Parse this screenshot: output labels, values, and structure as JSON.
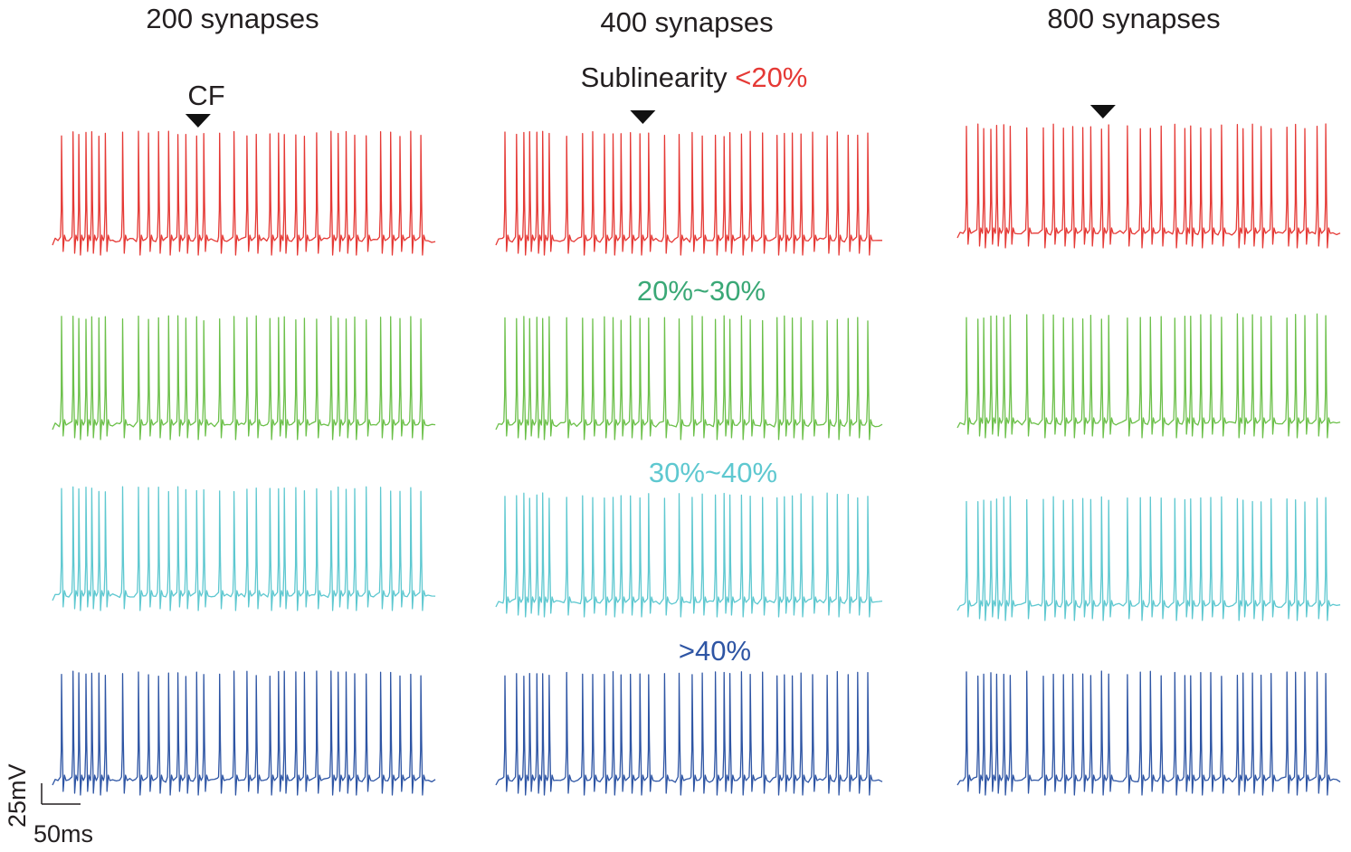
{
  "chart_data": {
    "type": "line",
    "columns": [
      "200 synapses",
      "400 synapses",
      "800 synapses"
    ],
    "cf_marker_label": "CF",
    "rows": [
      {
        "label_prefix": "Sublinearity ",
        "label": "<20%",
        "color": "#e53935"
      },
      {
        "label_prefix": "",
        "label": "20%~30%",
        "color": "#3aa876"
      },
      {
        "label_prefix": "",
        "label": "30%~40%",
        "color": "#5ec8d0"
      },
      {
        "label_prefix": "",
        "label": ">40%",
        "color": "#2e55a4"
      }
    ],
    "trace_colors": [
      "#e53935",
      "#6cc04a",
      "#5ec8d0",
      "#2e55a4"
    ],
    "label_prefix_color": "#231f20",
    "spike_times_ms": [
      [
        0,
        16,
        24,
        34,
        42,
        52,
        61,
        85,
        107,
        121,
        135,
        149,
        162,
        173,
        188,
        198,
        220,
        240,
        258,
        271,
        290,
        302,
        310,
        326,
        338,
        355,
        375,
        385,
        396,
        408,
        424,
        444,
        458,
        471,
        486,
        500
      ],
      [
        0,
        16,
        26,
        34,
        44,
        52,
        61,
        85,
        107,
        121,
        137,
        149,
        160,
        173,
        186,
        198,
        220,
        240,
        258,
        272,
        290,
        302,
        310,
        326,
        338,
        355,
        375,
        385,
        396,
        408,
        424,
        444,
        458,
        473,
        486,
        500
      ],
      [
        0,
        16,
        24,
        34,
        42,
        52,
        61,
        84,
        107,
        121,
        135,
        148,
        162,
        173,
        188,
        198,
        224,
        242,
        256,
        271,
        290,
        304,
        312,
        326,
        340,
        355,
        377,
        385,
        398,
        410,
        424,
        446,
        458,
        471,
        488,
        500
      ]
    ],
    "cf_time_ms": 190,
    "scale_bar": {
      "voltage": "25mV",
      "time": "50ms"
    }
  }
}
